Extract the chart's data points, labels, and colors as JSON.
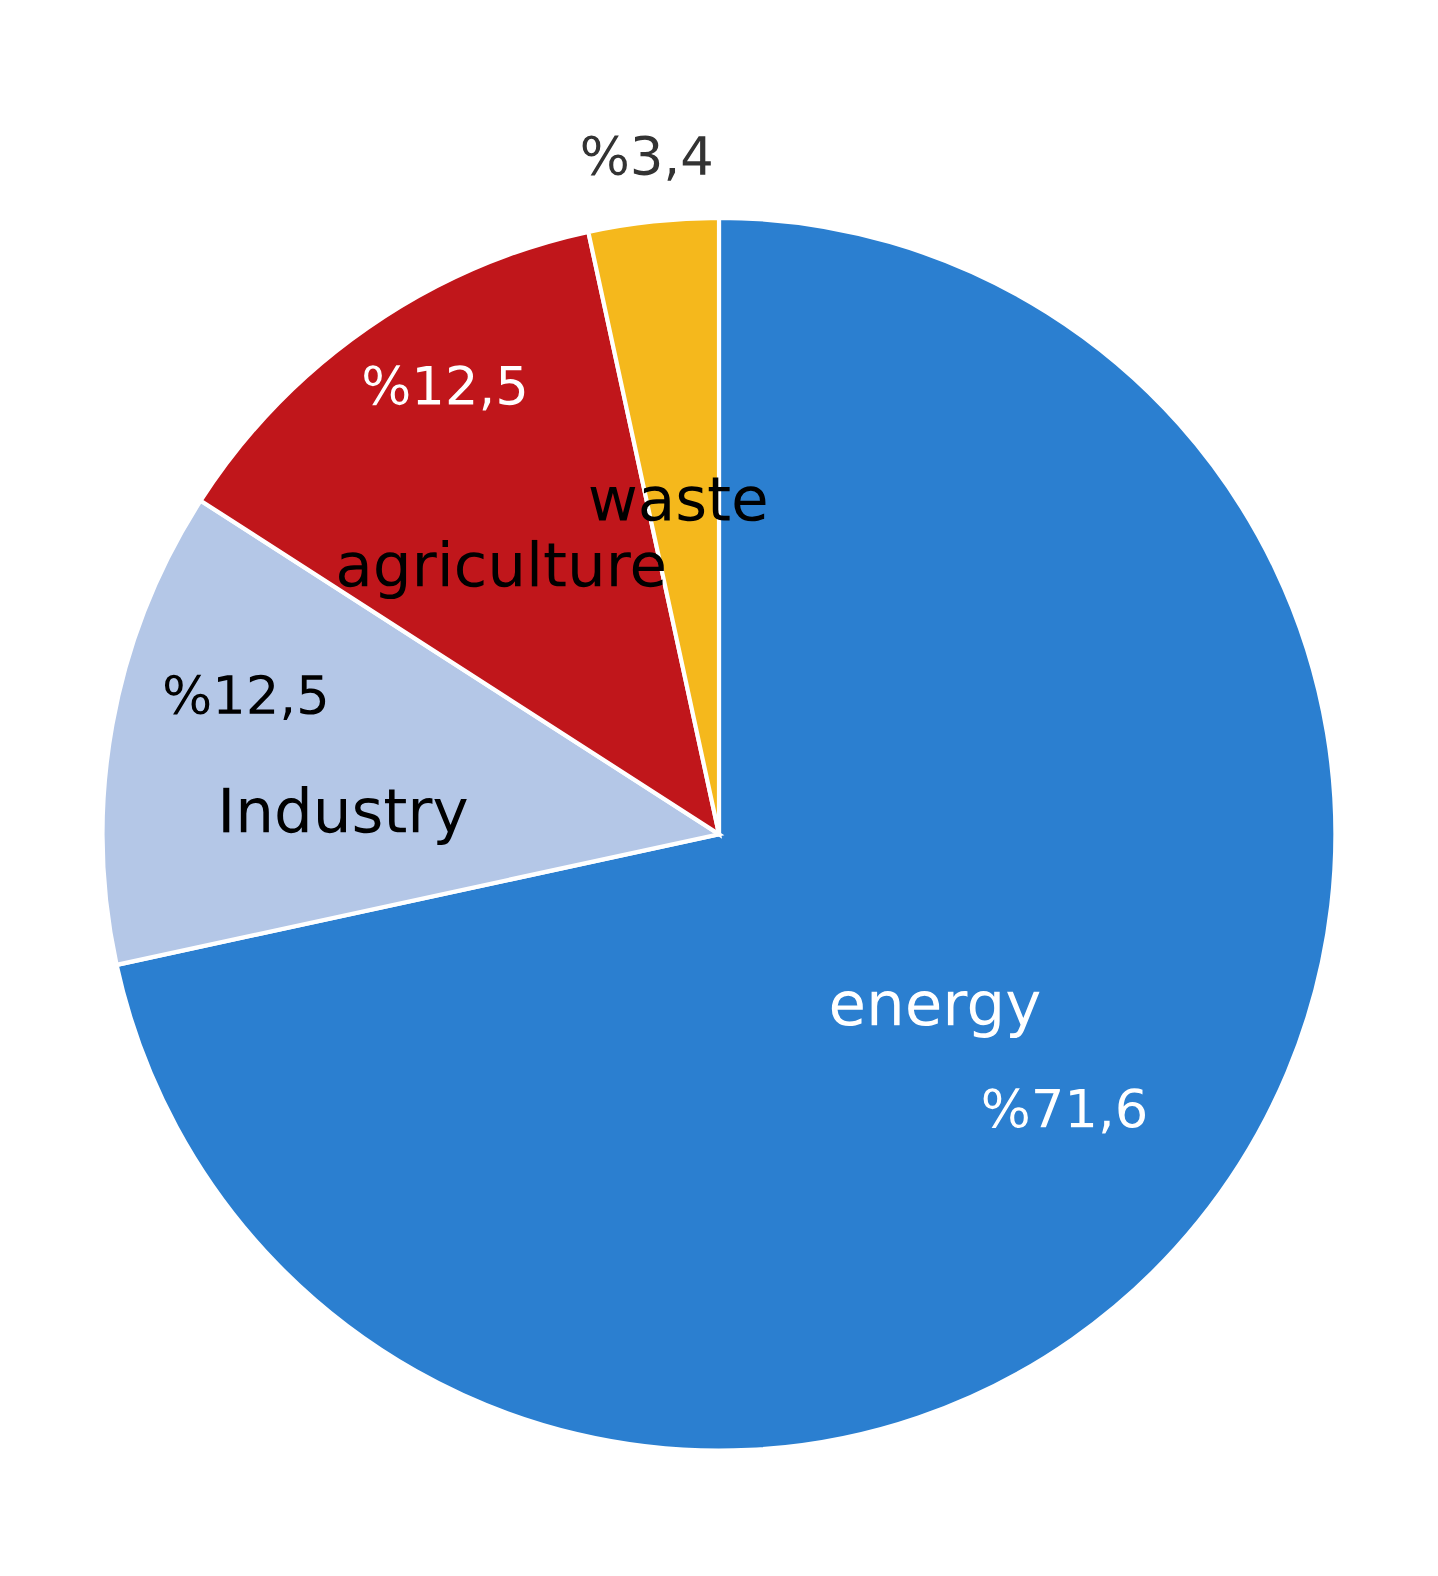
{
  "chart_data": {
    "type": "pie",
    "categories": [
      "energy",
      "Industry",
      "agriculture",
      "waste"
    ],
    "values": [
      71.6,
      12.5,
      12.5,
      3.4
    ],
    "colors": [
      "#2b7fd0",
      "#b4c7e7",
      "#c0161b",
      "#f5b81c"
    ],
    "value_labels": [
      "%71,6",
      "%12,5",
      "%12,5",
      "%3,4"
    ]
  }
}
